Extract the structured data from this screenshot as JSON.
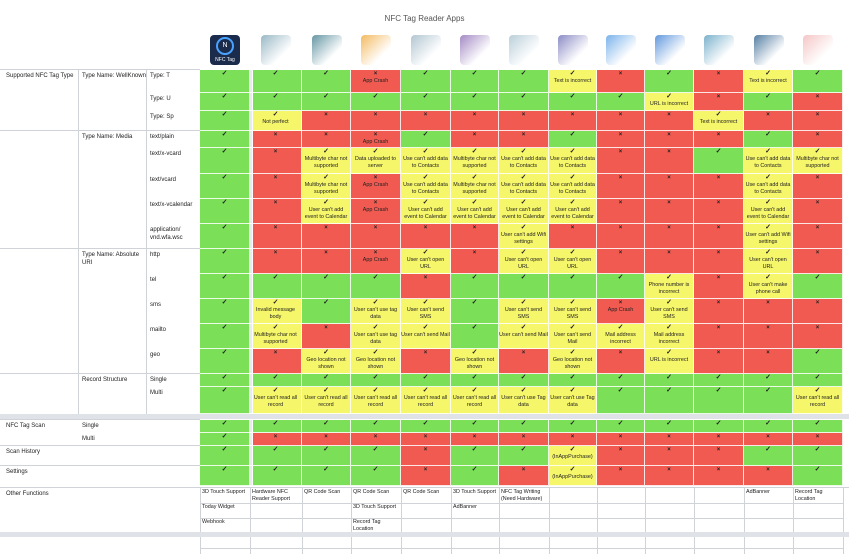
{
  "title": "NFC Tag Reader Apps",
  "first_app": {
    "name": "NFC Tag",
    "glyph": "N"
  },
  "apps": [
    {
      "color": "#7fa7b7"
    },
    {
      "color": "#3f7c8d"
    },
    {
      "color": "#f0a93a"
    },
    {
      "color": "#9fb8c6"
    },
    {
      "color": "#8d6cb5"
    },
    {
      "color": "#a9c3d0"
    },
    {
      "color": "#6f6fb8"
    },
    {
      "color": "#5aa0e6"
    },
    {
      "color": "#3b7fd4"
    },
    {
      "color": "#5a9fc0"
    },
    {
      "color": "#2c5f8d"
    },
    {
      "color": "#f2b8b8"
    }
  ],
  "rows": [
    {
      "labels": [
        "Supported NFC Tag Type",
        "Type Name: WellKnown",
        "Type: T"
      ],
      "cells": [
        [
          "g",
          ""
        ],
        [
          "g",
          ""
        ],
        [
          "g",
          ""
        ],
        [
          "r",
          "App Crash"
        ],
        [
          "g",
          ""
        ],
        [
          "g",
          ""
        ],
        [
          "g",
          ""
        ],
        [
          "y",
          "Text is incorrect"
        ],
        [
          "r",
          ""
        ],
        [
          "g",
          ""
        ],
        [
          "r",
          ""
        ],
        [
          "y",
          "Text is incorrect"
        ],
        [
          "g",
          ""
        ]
      ]
    },
    {
      "labels": [
        "",
        "",
        "Type: U"
      ],
      "cells": [
        [
          "g",
          ""
        ],
        [
          "g",
          ""
        ],
        [
          "g",
          ""
        ],
        [
          "g",
          ""
        ],
        [
          "g",
          ""
        ],
        [
          "g",
          ""
        ],
        [
          "g",
          ""
        ],
        [
          "g",
          ""
        ],
        [
          "g",
          ""
        ],
        [
          "y",
          "URL is incorrect"
        ],
        [
          "r",
          ""
        ],
        [
          "g",
          ""
        ],
        [
          "r",
          ""
        ]
      ]
    },
    {
      "labels": [
        "",
        "",
        "Type: Sp"
      ],
      "cells": [
        [
          "g",
          ""
        ],
        [
          "y",
          "Not perfect"
        ],
        [
          "r",
          ""
        ],
        [
          "r",
          ""
        ],
        [
          "r",
          ""
        ],
        [
          "r",
          ""
        ],
        [
          "r",
          ""
        ],
        [
          "r",
          ""
        ],
        [
          "r",
          ""
        ],
        [
          "r",
          ""
        ],
        [
          "y",
          "Text is incorrect"
        ],
        [
          "r",
          ""
        ],
        [
          "r",
          ""
        ]
      ]
    },
    {
      "labels": [
        "",
        "Type Name: Media",
        "text/plain"
      ],
      "cells": [
        [
          "g",
          ""
        ],
        [
          "r",
          ""
        ],
        [
          "r",
          ""
        ],
        [
          "r",
          "App Crash"
        ],
        [
          "g",
          ""
        ],
        [
          "r",
          ""
        ],
        [
          "r",
          ""
        ],
        [
          "g",
          ""
        ],
        [
          "r",
          ""
        ],
        [
          "r",
          ""
        ],
        [
          "r",
          ""
        ],
        [
          "g",
          ""
        ],
        [
          "r",
          ""
        ]
      ]
    },
    {
      "labels": [
        "",
        "",
        "text/x-vcard"
      ],
      "cells": [
        [
          "g",
          ""
        ],
        [
          "r",
          ""
        ],
        [
          "y",
          "Multibyte char not supported"
        ],
        [
          "y",
          "Data uploaded to server"
        ],
        [
          "y",
          "Use can't add data to Contacts"
        ],
        [
          "y",
          "Multibyte char not supported"
        ],
        [
          "y",
          "Use can't add data to Contacts"
        ],
        [
          "y",
          "Use can't add data to Contacts"
        ],
        [
          "r",
          ""
        ],
        [
          "r",
          ""
        ],
        [
          "g",
          ""
        ],
        [
          "y",
          "Use can't add data to Contacts"
        ],
        [
          "y",
          "Multibyte char not supported"
        ]
      ]
    },
    {
      "labels": [
        "",
        "",
        "text/vcard"
      ],
      "cells": [
        [
          "g",
          ""
        ],
        [
          "r",
          ""
        ],
        [
          "y",
          "Multibyte char not supported"
        ],
        [
          "r",
          "App Crash"
        ],
        [
          "y",
          "Use can't add data to Contacts"
        ],
        [
          "y",
          "Multibyte char not supported"
        ],
        [
          "y",
          "Use can't add data to Contacts"
        ],
        [
          "y",
          "Use can't add data to Contacts"
        ],
        [
          "r",
          ""
        ],
        [
          "r",
          ""
        ],
        [
          "r",
          ""
        ],
        [
          "y",
          "Use can't add data to Contacts"
        ],
        [
          "r",
          ""
        ]
      ]
    },
    {
      "labels": [
        "",
        "",
        "text/x-vcalendar"
      ],
      "cells": [
        [
          "g",
          ""
        ],
        [
          "r",
          ""
        ],
        [
          "y",
          "User can't add event to Calendar"
        ],
        [
          "r",
          "App Crash"
        ],
        [
          "y",
          "User can't add event to Calendar"
        ],
        [
          "y",
          "User can't add event to Calendar"
        ],
        [
          "y",
          "User can't add event to Calendar"
        ],
        [
          "y",
          "User can't add event to Calendar"
        ],
        [
          "r",
          ""
        ],
        [
          "r",
          ""
        ],
        [
          "r",
          ""
        ],
        [
          "y",
          "User can't add event to Calendar"
        ],
        [
          "r",
          ""
        ]
      ]
    },
    {
      "labels": [
        "",
        "",
        "application/ vnd.wfa.wsc"
      ],
      "cells": [
        [
          "g",
          ""
        ],
        [
          "r",
          ""
        ],
        [
          "r",
          ""
        ],
        [
          "r",
          ""
        ],
        [
          "r",
          ""
        ],
        [
          "r",
          ""
        ],
        [
          "y",
          "User can't add Wifi settings"
        ],
        [
          "r",
          ""
        ],
        [
          "r",
          ""
        ],
        [
          "r",
          ""
        ],
        [
          "r",
          ""
        ],
        [
          "y",
          "User can't add Wifi settings"
        ],
        [
          "r",
          ""
        ]
      ]
    },
    {
      "labels": [
        "",
        "Type Name: Absolute URI",
        "http"
      ],
      "cells": [
        [
          "g",
          ""
        ],
        [
          "r",
          ""
        ],
        [
          "r",
          ""
        ],
        [
          "r",
          "App Crash"
        ],
        [
          "y",
          "User can't open URL"
        ],
        [
          "r",
          ""
        ],
        [
          "y",
          "User can't open URL"
        ],
        [
          "y",
          "User can't open URL"
        ],
        [
          "r",
          ""
        ],
        [
          "r",
          ""
        ],
        [
          "r",
          ""
        ],
        [
          "y",
          "User can't open URL"
        ],
        [
          "r",
          ""
        ]
      ]
    },
    {
      "labels": [
        "",
        "",
        "tel"
      ],
      "cells": [
        [
          "g",
          ""
        ],
        [
          "g",
          ""
        ],
        [
          "g",
          ""
        ],
        [
          "g",
          ""
        ],
        [
          "r",
          ""
        ],
        [
          "g",
          ""
        ],
        [
          "g",
          ""
        ],
        [
          "g",
          ""
        ],
        [
          "g",
          ""
        ],
        [
          "y",
          "Phone number is incorrect"
        ],
        [
          "r",
          ""
        ],
        [
          "y",
          "User can't make phone call"
        ],
        [
          "g",
          ""
        ]
      ]
    },
    {
      "labels": [
        "",
        "",
        "sms"
      ],
      "cells": [
        [
          "g",
          ""
        ],
        [
          "y",
          "Invalid message body"
        ],
        [
          "g",
          ""
        ],
        [
          "y",
          "User can't use tag data"
        ],
        [
          "y",
          "User can't send SMS"
        ],
        [
          "g",
          ""
        ],
        [
          "y",
          "User can't send SMS"
        ],
        [
          "y",
          "User can't send SMS"
        ],
        [
          "r",
          "App Crash"
        ],
        [
          "y",
          "User can't send SMS"
        ],
        [
          "r",
          ""
        ],
        [
          "r",
          ""
        ],
        [
          "r",
          ""
        ]
      ]
    },
    {
      "labels": [
        "",
        "",
        "mailto"
      ],
      "cells": [
        [
          "g",
          ""
        ],
        [
          "y",
          "Multibyte char not supported"
        ],
        [
          "r",
          ""
        ],
        [
          "y",
          "User can't use tag data"
        ],
        [
          "y",
          "User can't send Mail"
        ],
        [
          "g",
          ""
        ],
        [
          "y",
          "User can't send Mail"
        ],
        [
          "y",
          "User can't send Mail"
        ],
        [
          "y",
          "Mail address incorrect"
        ],
        [
          "y",
          "Mail address incorrect"
        ],
        [
          "r",
          ""
        ],
        [
          "r",
          ""
        ],
        [
          "r",
          ""
        ]
      ]
    },
    {
      "labels": [
        "",
        "",
        "geo"
      ],
      "cells": [
        [
          "g",
          ""
        ],
        [
          "r",
          ""
        ],
        [
          "y",
          "Geo location not shown"
        ],
        [
          "y",
          "Geo location not shown"
        ],
        [
          "r",
          ""
        ],
        [
          "y",
          "Geo location not shown"
        ],
        [
          "r",
          ""
        ],
        [
          "y",
          "Geo location not shown"
        ],
        [
          "r",
          ""
        ],
        [
          "y",
          "URL is incorrect"
        ],
        [
          "r",
          ""
        ],
        [
          "r",
          ""
        ],
        [
          "g",
          ""
        ]
      ]
    },
    {
      "labels": [
        "",
        "Record Structure",
        "Single"
      ],
      "cells": [
        [
          "g",
          ""
        ],
        [
          "g",
          ""
        ],
        [
          "g",
          ""
        ],
        [
          "g",
          ""
        ],
        [
          "g",
          ""
        ],
        [
          "g",
          ""
        ],
        [
          "g",
          ""
        ],
        [
          "g",
          ""
        ],
        [
          "g",
          ""
        ],
        [
          "g",
          ""
        ],
        [
          "g",
          ""
        ],
        [
          "g",
          ""
        ],
        [
          "g",
          ""
        ]
      ]
    },
    {
      "labels": [
        "",
        "",
        "Multi"
      ],
      "cells": [
        [
          "g",
          ""
        ],
        [
          "y",
          "User can't read all record"
        ],
        [
          "y",
          "User can't read all record"
        ],
        [
          "y",
          "User can't read all record"
        ],
        [
          "y",
          "User can't read all record"
        ],
        [
          "y",
          "User can't read all record"
        ],
        [
          "y",
          "User can't use Tag data"
        ],
        [
          "y",
          "User can't use Tag data"
        ],
        [
          "g",
          ""
        ],
        [
          "g",
          ""
        ],
        [
          "g",
          ""
        ],
        [
          "g",
          ""
        ],
        [
          "y",
          "User can't read all record"
        ]
      ]
    },
    {
      "labels": [
        "NFC Tag Scan",
        "Single",
        ""
      ],
      "cells": [
        [
          "g",
          ""
        ],
        [
          "g",
          ""
        ],
        [
          "g",
          ""
        ],
        [
          "g",
          ""
        ],
        [
          "g",
          ""
        ],
        [
          "g",
          ""
        ],
        [
          "g",
          ""
        ],
        [
          "g",
          ""
        ],
        [
          "g",
          ""
        ],
        [
          "g",
          ""
        ],
        [
          "g",
          ""
        ],
        [
          "g",
          ""
        ],
        [
          "g",
          ""
        ]
      ]
    },
    {
      "labels": [
        "",
        "Multi",
        ""
      ],
      "cells": [
        [
          "g",
          ""
        ],
        [
          "r",
          ""
        ],
        [
          "r",
          ""
        ],
        [
          "r",
          ""
        ],
        [
          "r",
          ""
        ],
        [
          "r",
          ""
        ],
        [
          "r",
          ""
        ],
        [
          "r",
          ""
        ],
        [
          "r",
          ""
        ],
        [
          "r",
          ""
        ],
        [
          "r",
          ""
        ],
        [
          "r",
          ""
        ],
        [
          "r",
          ""
        ]
      ]
    },
    {
      "labels": [
        "Scan History",
        "",
        ""
      ],
      "cells": [
        [
          "g",
          ""
        ],
        [
          "g",
          ""
        ],
        [
          "g",
          ""
        ],
        [
          "g",
          ""
        ],
        [
          "r",
          ""
        ],
        [
          "g",
          ""
        ],
        [
          "g",
          ""
        ],
        [
          "y",
          "(InAppPurchase)"
        ],
        [
          "r",
          ""
        ],
        [
          "r",
          ""
        ],
        [
          "r",
          ""
        ],
        [
          "g",
          ""
        ],
        [
          "g",
          ""
        ]
      ]
    },
    {
      "labels": [
        "Settings",
        "",
        ""
      ],
      "cells": [
        [
          "g",
          ""
        ],
        [
          "g",
          ""
        ],
        [
          "g",
          ""
        ],
        [
          "g",
          ""
        ],
        [
          "r",
          ""
        ],
        [
          "g",
          ""
        ],
        [
          "r",
          ""
        ],
        [
          "y",
          "(InAppPurchase)"
        ],
        [
          "r",
          ""
        ],
        [
          "r",
          ""
        ],
        [
          "r",
          ""
        ],
        [
          "r",
          ""
        ],
        [
          "g",
          ""
        ]
      ]
    }
  ],
  "other_label": "Other Functions",
  "other": [
    [
      "3D Touch Support",
      "Today Widget",
      "Webhook"
    ],
    [
      "Hardware NFC Reader Support"
    ],
    [
      "QR Code Scan"
    ],
    [
      "QR Code Scan",
      "3D Touch Support",
      "Record Tag Location"
    ],
    [
      "QR Code Scan"
    ],
    [
      "3D Touch Support",
      "AdBanner"
    ],
    [
      "NFC Tag Writing (Need Hardware)"
    ],
    [],
    [],
    [],
    [],
    [
      "AdBanner"
    ],
    [
      "Record Tag Location"
    ]
  ],
  "marks": {
    "ok": "✓",
    "ng": "×"
  }
}
